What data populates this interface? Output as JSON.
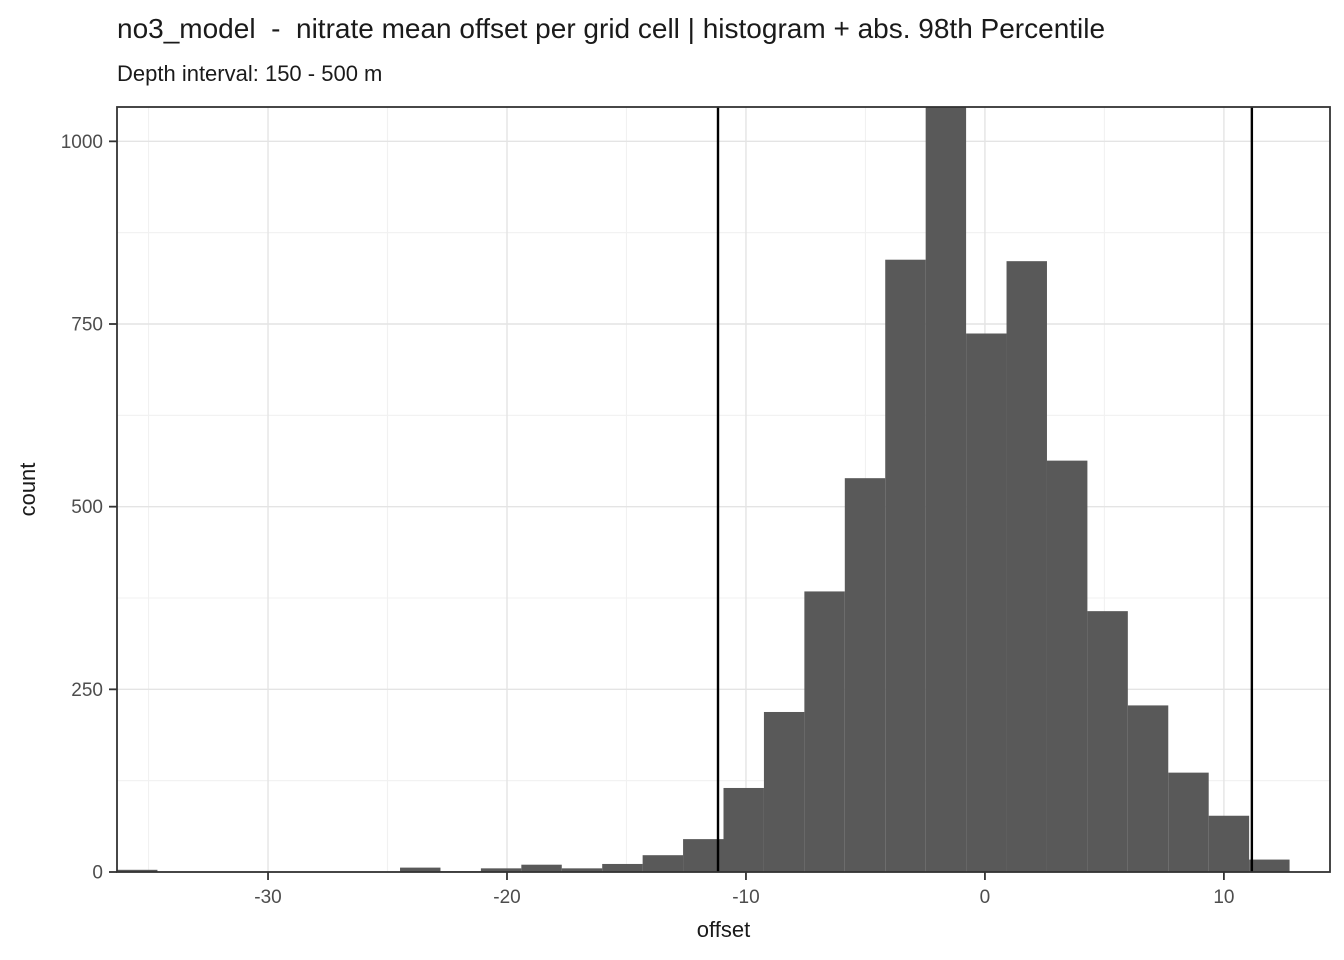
{
  "figure": {
    "title": "no3_model  -  nitrate mean offset per grid cell | histogram + abs. 98th Percentile",
    "subtitle": "Depth interval: 150 - 500 m"
  },
  "chart_data": {
    "type": "bar",
    "subtype": "histogram",
    "title": "no3_model - nitrate mean offset per grid cell | histogram + abs. 98th Percentile",
    "subtitle": "Depth interval: 150 - 500 m",
    "xlabel": "offset",
    "ylabel": "count",
    "bin_start": -36.32,
    "bin_width": 1.692,
    "counts": [
      3,
      0,
      0,
      0,
      0,
      0,
      0,
      6,
      1,
      5,
      10,
      5,
      11,
      23,
      45,
      115,
      219,
      384,
      539,
      838,
      1047,
      737,
      836,
      563,
      357,
      228,
      136,
      77,
      17,
      0
    ],
    "percentile_lines": {
      "label": "abs. 98th Percentile",
      "values": [
        -11.17,
        11.17
      ]
    },
    "x_ticks": [
      -30,
      -20,
      -10,
      0,
      10
    ],
    "x_minor_ticks": [
      -35,
      -25,
      -15,
      -5,
      5
    ],
    "y_ticks": [
      0,
      250,
      500,
      750,
      1000
    ],
    "y_minor_ticks": [
      125,
      375,
      625,
      875
    ],
    "x_domain": [
      -36.32,
      14.44
    ],
    "y_domain": [
      0,
      1047
    ],
    "grid": true,
    "legend": "none",
    "colors": {
      "bar": "#595959",
      "percentile_line": "#000000",
      "grid_major": "#e4e4e4",
      "grid_minor": "#f1f1f1",
      "panel_border": "#333333",
      "tick_mark": "#333333",
      "tick_label": "#4d4d4d",
      "axis_title": "#1a1a1a",
      "title_text": "#1a1a1a"
    }
  }
}
